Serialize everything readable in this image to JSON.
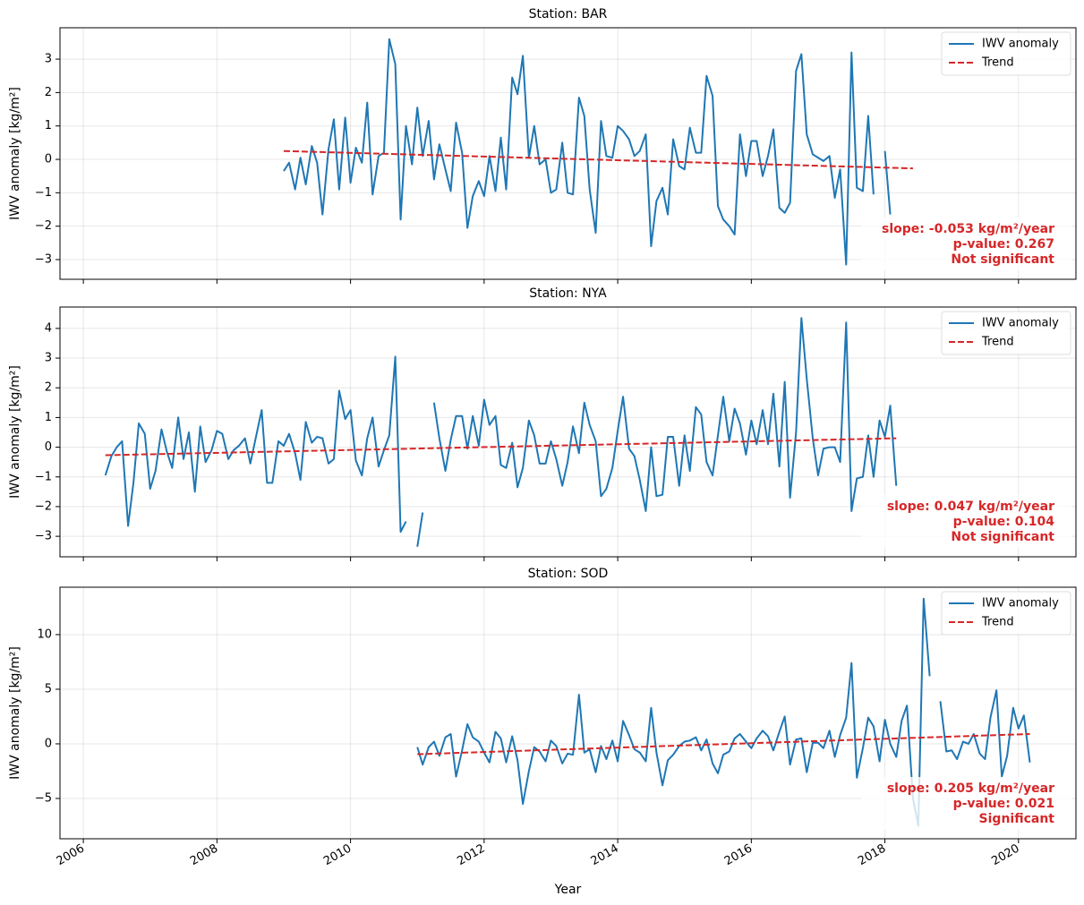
{
  "chart_data": [
    {
      "type": "line",
      "title": "Station: BAR",
      "ylabel": "IWV anomaly [kg/m²]",
      "xlim": [
        2005.65,
        2020.86
      ],
      "xticks": [
        2006,
        2008,
        2010,
        2012,
        2014,
        2016,
        2018,
        2020
      ],
      "ylim": [
        -3.59,
        3.94
      ],
      "yticks": [
        {
          "value": -3,
          "label": "−3"
        },
        {
          "value": -2,
          "label": "−2"
        },
        {
          "value": -1,
          "label": "−1"
        },
        0,
        1,
        2,
        3
      ],
      "grid": true,
      "legend": "upper right",
      "annotation": [
        "slope: -0.053 kg/m²/year",
        "p-value: 0.267",
        "Not significant"
      ],
      "series": [
        {
          "name": "IWV anomaly",
          "color": "#1f77b4",
          "x": [
            2009,
            2009.08,
            2009.17,
            2009.25,
            2009.33,
            2009.42,
            2009.5,
            2009.58,
            2009.67,
            2009.75,
            2009.83,
            2009.92,
            2010,
            2010.08,
            2010.17,
            2010.25,
            2010.33,
            2010.42,
            2010.5,
            2010.58,
            2010.67,
            2010.75,
            2010.83,
            2010.92,
            2011,
            2011.08,
            2011.17,
            2011.25,
            2011.33,
            2011.42,
            2011.5,
            2011.58,
            2011.67,
            2011.75,
            2011.83,
            2011.92,
            2012,
            2012.08,
            2012.17,
            2012.25,
            2012.33,
            2012.42,
            2012.5,
            2012.58,
            2012.67,
            2012.75,
            2012.83,
            2012.92,
            2013,
            2013.08,
            2013.17,
            2013.25,
            2013.33,
            2013.42,
            2013.5,
            2013.58,
            2013.67,
            2013.75,
            2013.83,
            2013.92,
            2014,
            2014.08,
            2014.17,
            2014.25,
            2014.33,
            2014.42,
            2014.5,
            2014.58,
            2014.67,
            2014.75,
            2014.83,
            2014.92,
            2015,
            2015.08,
            2015.17,
            2015.25,
            2015.33,
            2015.42,
            2015.5,
            2015.58,
            2015.67,
            2015.75,
            2015.83,
            2015.92,
            2016,
            2016.08,
            2016.17,
            2016.25,
            2016.33,
            2016.42,
            2016.5,
            2016.58,
            2016.67,
            2016.75,
            2016.83,
            2016.92,
            2017,
            2017.08,
            2017.17,
            2017.25,
            2017.33,
            2017.42,
            2017.5,
            2017.58,
            2017.67,
            2017.75,
            2017.83,
            2017.92,
            2018,
            2018.08
          ],
          "values": [
            -0.35,
            -0.1,
            -0.9,
            0.05,
            -0.75,
            0.4,
            -0.1,
            -1.65,
            0.3,
            1.2,
            -0.9,
            1.25,
            -0.7,
            0.35,
            -0.1,
            1.7,
            -1.05,
            0.1,
            0.2,
            3.6,
            2.85,
            -1.8,
            1.0,
            -0.15,
            1.55,
            0.1,
            1.15,
            -0.6,
            0.45,
            -0.3,
            -0.95,
            1.1,
            0.2,
            -2.05,
            -1.1,
            -0.65,
            -1.1,
            0.1,
            -0.95,
            0.65,
            -0.9,
            2.45,
            1.95,
            3.1,
            0.05,
            1.0,
            -0.15,
            0.0,
            -1.0,
            -0.9,
            0.5,
            -1.0,
            -1.05,
            1.85,
            1.3,
            -0.9,
            -2.2,
            1.15,
            0.1,
            0.05,
            1.0,
            0.85,
            0.6,
            0.1,
            0.25,
            0.75,
            -2.6,
            -1.25,
            -0.85,
            -1.65,
            0.6,
            -0.2,
            -0.3,
            0.95,
            0.2,
            0.2,
            2.5,
            1.9,
            -1.4,
            -1.8,
            -2.0,
            -2.25,
            0.75,
            -0.5,
            0.55,
            0.55,
            -0.5,
            0.1,
            0.9,
            -1.45,
            -1.6,
            -1.3,
            2.65,
            3.15,
            0.75,
            0.15,
            0.05,
            -0.05,
            0.1,
            -1.15,
            -0.3,
            -3.15,
            3.2,
            -0.85,
            -0.95,
            1.3,
            -1.05,
            null,
            0.25,
            -1.65
          ]
        },
        {
          "name": "Trend",
          "color": "#d62728",
          "dashed": true,
          "x": [
            2009,
            2018.42
          ],
          "values": [
            0.25,
            -0.27
          ]
        }
      ]
    },
    {
      "type": "line",
      "title": "Station: NYA",
      "ylabel": "IWV anomaly [kg/m²]",
      "xlim": [
        2005.65,
        2020.86
      ],
      "xticks": [
        2006,
        2008,
        2010,
        2012,
        2014,
        2016,
        2018,
        2020
      ],
      "ylim": [
        -3.69,
        4.72
      ],
      "yticks": [
        {
          "value": -3,
          "label": "−3"
        },
        {
          "value": -2,
          "label": "−2"
        },
        {
          "value": -1,
          "label": "−1"
        },
        0,
        1,
        2,
        3,
        4
      ],
      "grid": true,
      "legend": "upper right",
      "annotation": [
        "slope: 0.047 kg/m²/year",
        "p-value: 0.104",
        "Not significant"
      ],
      "series": [
        {
          "name": "IWV anomaly",
          "color": "#1f77b4",
          "x": [
            2006.33,
            2006.42,
            2006.5,
            2006.58,
            2006.67,
            2006.75,
            2006.83,
            2006.92,
            2007,
            2007.08,
            2007.17,
            2007.25,
            2007.33,
            2007.42,
            2007.5,
            2007.58,
            2007.67,
            2007.75,
            2007.83,
            2007.92,
            2008,
            2008.08,
            2008.17,
            2008.25,
            2008.33,
            2008.42,
            2008.5,
            2008.58,
            2008.67,
            2008.75,
            2008.83,
            2008.92,
            2009,
            2009.08,
            2009.17,
            2009.25,
            2009.33,
            2009.42,
            2009.5,
            2009.58,
            2009.67,
            2009.75,
            2009.83,
            2009.92,
            2010,
            2010.08,
            2010.17,
            2010.25,
            2010.33,
            2010.42,
            2010.5,
            2010.58,
            2010.67,
            2010.75,
            2010.83,
            2010.92,
            2011,
            2011.08,
            2011.17,
            2011.25,
            2011.33,
            2011.42,
            2011.5,
            2011.58,
            2011.67,
            2011.75,
            2011.83,
            2011.92,
            2012,
            2012.08,
            2012.17,
            2012.25,
            2012.33,
            2012.42,
            2012.5,
            2012.58,
            2012.67,
            2012.75,
            2012.83,
            2012.92,
            2013,
            2013.08,
            2013.17,
            2013.25,
            2013.33,
            2013.42,
            2013.5,
            2013.58,
            2013.67,
            2013.75,
            2013.83,
            2013.92,
            2014,
            2014.08,
            2014.17,
            2014.25,
            2014.33,
            2014.42,
            2014.5,
            2014.58,
            2014.67,
            2014.75,
            2014.83,
            2014.92,
            2015,
            2015.08,
            2015.17,
            2015.25,
            2015.33,
            2015.42,
            2015.5,
            2015.58,
            2015.67,
            2015.75,
            2015.83,
            2015.92,
            2016,
            2016.08,
            2016.17,
            2016.25,
            2016.33,
            2016.42,
            2016.5,
            2016.58,
            2016.67,
            2016.75,
            2016.83,
            2016.92,
            2017,
            2017.08,
            2017.17,
            2017.25,
            2017.33,
            2017.42,
            2017.5,
            2017.58,
            2017.67,
            2017.75,
            2017.83,
            2017.92,
            2018,
            2018.08,
            2018.17
          ],
          "values": [
            -0.95,
            -0.3,
            0.0,
            0.2,
            -2.65,
            -1.2,
            0.8,
            0.45,
            -1.4,
            -0.8,
            0.6,
            -0.15,
            -0.7,
            1.0,
            -0.4,
            0.5,
            -1.5,
            0.7,
            -0.5,
            -0.1,
            0.55,
            0.45,
            -0.4,
            -0.1,
            0.05,
            0.3,
            -0.55,
            0.3,
            1.25,
            -1.2,
            -1.2,
            0.2,
            0.05,
            0.45,
            -0.2,
            -1.1,
            0.85,
            0.15,
            0.35,
            0.3,
            -0.55,
            -0.4,
            1.9,
            0.95,
            1.25,
            -0.45,
            -0.95,
            0.3,
            1.0,
            -0.65,
            -0.1,
            0.4,
            3.05,
            -2.85,
            -2.5,
            null,
            -3.35,
            -2.2,
            null,
            1.5,
            0.3,
            -0.8,
            0.25,
            1.05,
            1.05,
            -0.05,
            1.05,
            0.05,
            1.6,
            0.75,
            1.05,
            -0.6,
            -0.7,
            0.15,
            -1.35,
            -0.7,
            0.9,
            0.4,
            -0.55,
            -0.55,
            0.2,
            -0.4,
            -1.3,
            -0.5,
            0.7,
            -0.2,
            1.5,
            0.75,
            0.2,
            -1.65,
            -1.4,
            -0.7,
            0.55,
            1.7,
            -0.05,
            -0.3,
            -1.1,
            -2.15,
            0.0,
            -1.65,
            -1.6,
            0.35,
            0.35,
            -1.3,
            0.4,
            -0.8,
            1.35,
            1.1,
            -0.5,
            -0.95,
            0.4,
            1.7,
            0.2,
            1.3,
            0.8,
            -0.25,
            0.9,
            0.1,
            1.25,
            0.1,
            1.8,
            -0.65,
            2.2,
            -1.7,
            0.5,
            4.35,
            2.3,
            0.3,
            -0.95,
            -0.05,
            0.0,
            0.0,
            -0.5,
            4.2,
            -2.15,
            -1.05,
            -1.0,
            0.4,
            -1.0,
            0.9,
            0.35,
            1.4,
            -1.3
          ]
        },
        {
          "name": "Trend",
          "color": "#d62728",
          "dashed": true,
          "x": [
            2006.33,
            2018.17
          ],
          "values": [
            -0.27,
            0.3
          ]
        }
      ]
    },
    {
      "type": "line",
      "title": "Station: SOD",
      "ylabel": "IWV anomaly [kg/m²]",
      "xlabel": "Year",
      "xlim": [
        2005.65,
        2020.86
      ],
      "xticks": [
        2006,
        2008,
        2010,
        2012,
        2014,
        2016,
        2018,
        2020
      ],
      "ylim": [
        -8.69,
        14.34
      ],
      "yticks": [
        {
          "value": -5,
          "label": "−5"
        },
        0,
        5,
        10
      ],
      "grid": true,
      "legend": "upper right",
      "annotation": [
        "slope: 0.205 kg/m²/year",
        "p-value: 0.021",
        "Significant"
      ],
      "series": [
        {
          "name": "IWV anomaly",
          "color": "#1f77b4",
          "x": [
            2011,
            2011.08,
            2011.17,
            2011.25,
            2011.33,
            2011.42,
            2011.5,
            2011.58,
            2011.67,
            2011.75,
            2011.83,
            2011.92,
            2012,
            2012.08,
            2012.17,
            2012.25,
            2012.33,
            2012.42,
            2012.5,
            2012.58,
            2012.67,
            2012.75,
            2012.83,
            2012.92,
            2013,
            2013.08,
            2013.17,
            2013.25,
            2013.33,
            2013.42,
            2013.5,
            2013.58,
            2013.67,
            2013.75,
            2013.83,
            2013.92,
            2014,
            2014.08,
            2014.17,
            2014.25,
            2014.33,
            2014.42,
            2014.5,
            2014.58,
            2014.67,
            2014.75,
            2014.83,
            2014.92,
            2015,
            2015.08,
            2015.17,
            2015.25,
            2015.33,
            2015.42,
            2015.5,
            2015.58,
            2015.67,
            2015.75,
            2015.83,
            2015.92,
            2016,
            2016.08,
            2016.17,
            2016.25,
            2016.33,
            2016.42,
            2016.5,
            2016.58,
            2016.67,
            2016.75,
            2016.83,
            2016.92,
            2017,
            2017.08,
            2017.17,
            2017.25,
            2017.33,
            2017.42,
            2017.5,
            2017.58,
            2017.67,
            2017.75,
            2017.83,
            2017.92,
            2018,
            2018.08,
            2018.17,
            2018.25,
            2018.33,
            2018.42,
            2018.5,
            2018.58,
            2018.67,
            2018.75,
            2018.83,
            2018.92,
            2019,
            2019.08,
            2019.17,
            2019.25,
            2019.33,
            2019.42,
            2019.5,
            2019.58,
            2019.67,
            2019.75,
            2019.83,
            2019.92,
            2020,
            2020.08,
            2020.17
          ],
          "values": [
            -0.3,
            -1.9,
            -0.3,
            0.2,
            -1.1,
            0.6,
            0.9,
            -3.0,
            -0.6,
            1.8,
            0.6,
            0.2,
            -0.8,
            -1.7,
            1.1,
            0.5,
            -1.7,
            0.7,
            -1.5,
            -5.5,
            -2.5,
            -0.3,
            -0.7,
            -1.6,
            0.3,
            -0.2,
            -1.8,
            -0.9,
            -1.0,
            4.5,
            -0.8,
            -0.5,
            -2.6,
            -0.2,
            -1.4,
            0.3,
            -1.6,
            2.1,
            0.8,
            -0.5,
            -0.8,
            -1.6,
            3.3,
            -0.8,
            -3.8,
            -1.5,
            -1.0,
            -0.2,
            0.2,
            0.3,
            0.6,
            -0.6,
            0.4,
            -1.8,
            -2.7,
            -1.0,
            -0.7,
            0.5,
            0.9,
            0.2,
            -0.4,
            0.5,
            1.2,
            0.7,
            -0.6,
            1.1,
            2.5,
            -1.9,
            0.4,
            0.5,
            -2.6,
            0.1,
            0.1,
            -0.4,
            1.2,
            -1.2,
            0.8,
            2.4,
            7.4,
            -3.1,
            -0.4,
            2.4,
            1.6,
            -1.6,
            2.2,
            0.0,
            -1.2,
            2.1,
            3.5,
            -5.0,
            -7.5,
            13.3,
            6.2,
            null,
            3.9,
            -0.7,
            -0.6,
            -1.4,
            0.2,
            0.0,
            0.9,
            -0.9,
            -1.4,
            2.4,
            4.9,
            -3.0,
            -1.1,
            3.3,
            1.4,
            2.6,
            -1.7
          ]
        },
        {
          "name": "Trend",
          "color": "#d62728",
          "dashed": true,
          "x": [
            2011,
            2020.17
          ],
          "values": [
            -0.95,
            0.9
          ]
        }
      ]
    }
  ]
}
